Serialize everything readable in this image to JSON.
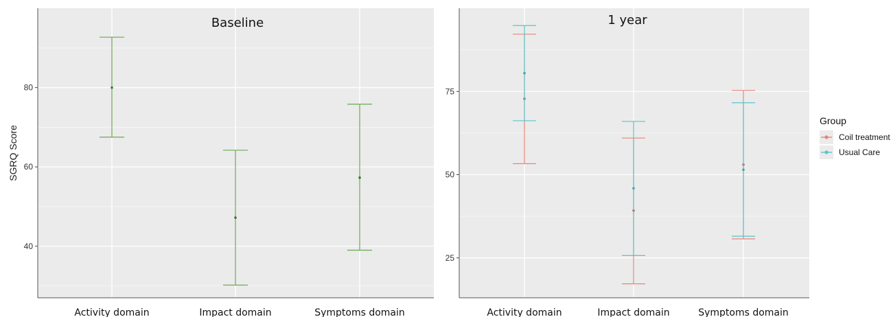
{
  "chart_data": [
    {
      "type": "errorbar",
      "title": "Baseline",
      "xlabel": "",
      "ylabel": "SGRQ Score",
      "ylim": [
        27,
        100
      ],
      "yticks": [
        40,
        60,
        80
      ],
      "categories": [
        "Activity domain",
        "Impact domain",
        "Symptoms domain"
      ],
      "grid": true,
      "series": [
        {
          "color": "#6aa84f",
          "points": [
            {
              "category": "Activity domain",
              "mean": 80,
              "lower": 67.5,
              "upper": 92.7
            },
            {
              "category": "Impact domain",
              "mean": 47.2,
              "lower": 30.2,
              "upper": 64.2
            },
            {
              "category": "Symptoms domain",
              "mean": 57.3,
              "lower": 39.0,
              "upper": 75.8
            }
          ]
        }
      ]
    },
    {
      "type": "errorbar",
      "title": "1 year",
      "xlabel": "",
      "ylabel": "",
      "ylim": [
        13,
        100
      ],
      "yticks": [
        25,
        50,
        75
      ],
      "categories": [
        "Activity domain",
        "Impact domain",
        "Symptoms domain"
      ],
      "grid": true,
      "legend": {
        "title": "Group",
        "position": "right",
        "items": [
          {
            "label": "Coil treatment",
            "color": "#e8837b"
          },
          {
            "label": "Usual Care",
            "color": "#5bc4c9"
          }
        ]
      },
      "series": [
        {
          "name": "Coil treatment",
          "color": "#e8837b",
          "points": [
            {
              "category": "Activity domain",
              "mean": 72.8,
              "lower": 53.3,
              "upper": 92.2
            },
            {
              "category": "Impact domain",
              "mean": 39.2,
              "lower": 17.2,
              "upper": 61.0
            },
            {
              "category": "Symptoms domain",
              "mean": 53.0,
              "lower": 30.7,
              "upper": 75.3
            }
          ]
        },
        {
          "name": "Usual Care",
          "color": "#5bc4c9",
          "points": [
            {
              "category": "Activity domain",
              "mean": 80.5,
              "lower": 66.2,
              "upper": 94.8
            },
            {
              "category": "Impact domain",
              "mean": 45.9,
              "lower": 25.7,
              "upper": 66.0
            },
            {
              "category": "Symptoms domain",
              "mean": 51.5,
              "lower": 31.5,
              "upper": 71.6
            }
          ]
        }
      ]
    }
  ]
}
